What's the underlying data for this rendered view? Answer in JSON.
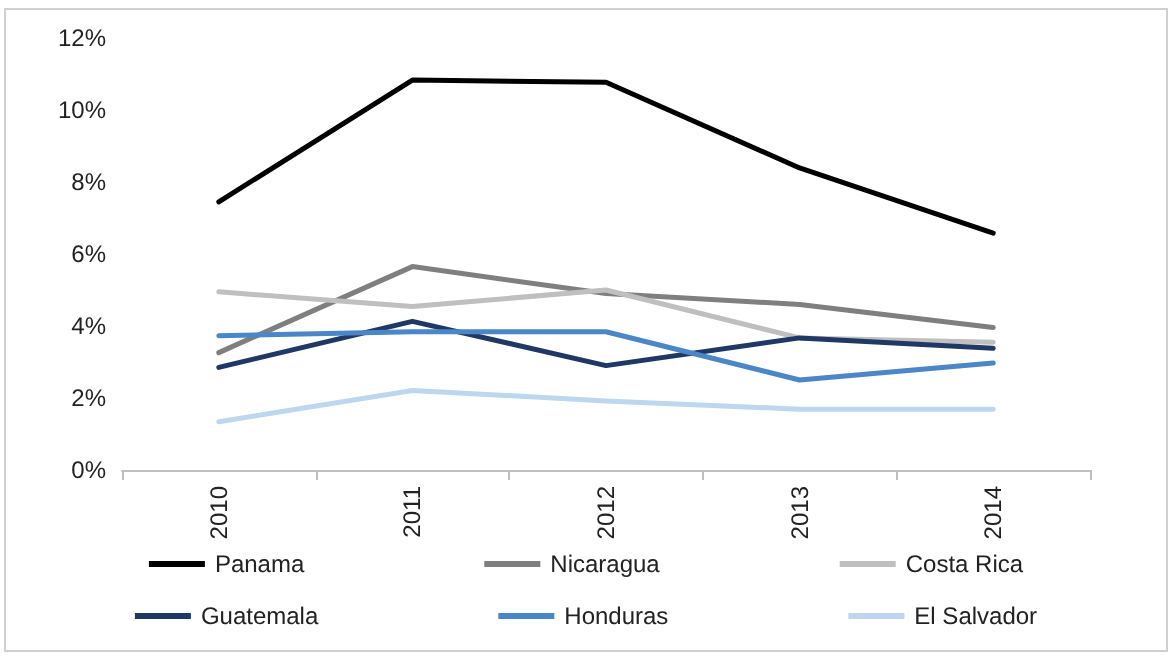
{
  "chart_data": {
    "type": "line",
    "categories": [
      "2010",
      "2011",
      "2012",
      "2013",
      "2014"
    ],
    "series": [
      {
        "name": "Panama",
        "color": "#000000",
        "values": [
          7.45,
          10.83,
          10.77,
          8.39,
          6.58
        ]
      },
      {
        "name": "Nicaragua",
        "color": "#7f7f7f",
        "values": [
          3.26,
          5.65,
          4.9,
          4.6,
          3.96
        ]
      },
      {
        "name": "Costa Rica",
        "color": "#bfbfbf",
        "values": [
          4.95,
          4.54,
          5.0,
          3.67,
          3.55
        ]
      },
      {
        "name": "Guatemala",
        "color": "#1f3864",
        "values": [
          2.85,
          4.13,
          2.9,
          3.67,
          3.38
        ]
      },
      {
        "name": "Honduras",
        "color": "#4a86c8",
        "values": [
          3.73,
          3.84,
          3.84,
          2.5,
          2.97
        ]
      },
      {
        "name": "El Salvador",
        "color": "#bdd7ee",
        "values": [
          1.34,
          2.21,
          1.92,
          1.69,
          1.69
        ]
      }
    ],
    "ylim": [
      0,
      12
    ],
    "yticks": [
      {
        "value": 0,
        "label": "0%"
      },
      {
        "value": 2,
        "label": "2%"
      },
      {
        "value": 4,
        "label": "4%"
      },
      {
        "value": 6,
        "label": "6%"
      },
      {
        "value": 8,
        "label": "8%"
      },
      {
        "value": 10,
        "label": "10%"
      },
      {
        "value": 12,
        "label": "12%"
      }
    ],
    "grid": false,
    "legend": "bottom",
    "marker": "none",
    "line_style": "solid"
  }
}
